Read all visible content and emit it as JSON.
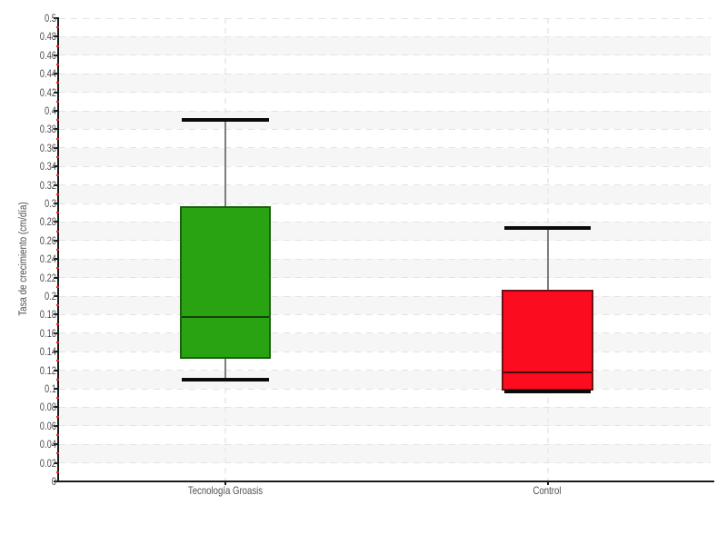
{
  "chart_data": {
    "type": "boxplot",
    "title": "",
    "xlabel": "",
    "ylabel": "Tasa de crecimiento (cm/día)",
    "ylim": [
      0,
      0.5
    ],
    "ytick_step": 0.02,
    "yminor_tick_step": 0.01,
    "ytick_labels": [
      "0",
      "0.02",
      "0.04",
      "0.06",
      "0.08",
      "0.1",
      "0.12",
      "0.14",
      "0.16",
      "0.18",
      "0.2",
      "0.22",
      "0.24",
      "0.26",
      "0.28",
      "0.3",
      "0.32",
      "0.34",
      "0.36",
      "0.38",
      "0.4",
      "0.42",
      "0.44",
      "0.46",
      "0.48",
      "0.5"
    ],
    "grid": "horizontal dashed gridlines every 0.02 over alternating light-gray bands; faint dashed vertical line at each category center",
    "legend": null,
    "categories": [
      "Tecnología Groasis",
      "Control"
    ],
    "series": [
      {
        "name": "Tecnología Groasis",
        "whisker_low": 0.11,
        "q1": 0.133,
        "median": 0.177,
        "q3": 0.296,
        "whisker_high": 0.39,
        "fill": "#2aa312",
        "border": "#1d5f10",
        "median_color": "#16400e"
      },
      {
        "name": "Control",
        "whisker_low": 0.0975,
        "q1": 0.099,
        "median": 0.118,
        "q3": 0.206,
        "whisker_high": 0.274,
        "fill": "#fb0d1f",
        "border": "#6e1014",
        "median_color": "#4a0a0e"
      }
    ],
    "style": {
      "background": "#ffffff",
      "band_color": "#f6f6f6",
      "grid_color": "#e3e3e3",
      "axis_color": "#1a1a1a",
      "tick_label_color": "#4f4f4f",
      "minor_tick_color": "#f0251a",
      "whisker_color": "#7d7d7d",
      "cap_color": "#0a0a0a"
    }
  }
}
